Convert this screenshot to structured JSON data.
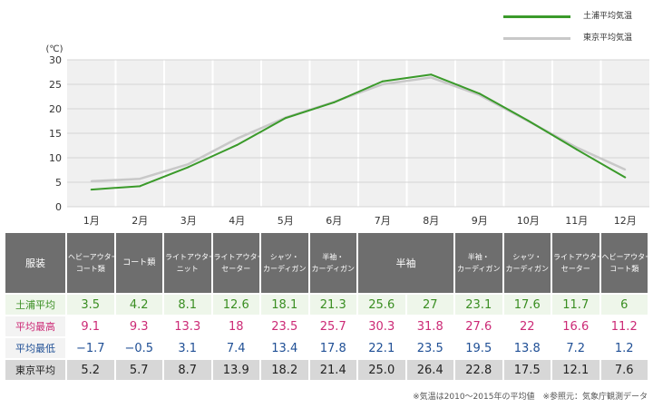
{
  "legend": [
    {
      "label": "土浦平均気温",
      "color": "#3a9a2a"
    },
    {
      "label": "東京平均気温",
      "color": "#c8c8c8"
    }
  ],
  "chart_data": {
    "type": "line",
    "title": "",
    "ylabel": "(℃)",
    "ylim": [
      0,
      30
    ],
    "yticks": [
      "0",
      "5",
      "10",
      "15",
      "20",
      "25",
      "30"
    ],
    "categories": [
      "1月",
      "2月",
      "3月",
      "4月",
      "5月",
      "6月",
      "7月",
      "8月",
      "9月",
      "10月",
      "11月",
      "12月"
    ],
    "series": [
      {
        "name": "東京平均気温",
        "color": "#c8c8c8",
        "values": [
          5.2,
          5.7,
          8.7,
          13.9,
          18.2,
          21.4,
          25.0,
          26.4,
          22.8,
          17.5,
          12.1,
          7.6
        ]
      },
      {
        "name": "土浦平均気温",
        "color": "#3a9a2a",
        "values": [
          3.5,
          4.2,
          8.1,
          12.6,
          18.1,
          21.3,
          25.6,
          27,
          23.1,
          17.6,
          11.7,
          6
        ]
      }
    ]
  },
  "table": {
    "corner": "服装",
    "clothing": [
      {
        "lines": [
          "ヘビーアウター・",
          "コート類"
        ],
        "span": 1
      },
      {
        "lines": [
          "コート類"
        ],
        "span": 1
      },
      {
        "lines": [
          "ライトアウター・",
          "ニット"
        ],
        "span": 1
      },
      {
        "lines": [
          "ライトアウター・",
          "セーター"
        ],
        "span": 1
      },
      {
        "lines": [
          "シャツ・",
          "カーディガン"
        ],
        "span": 1
      },
      {
        "lines": [
          "半袖・",
          "カーディガン"
        ],
        "span": 1
      },
      {
        "lines": [
          "半袖"
        ],
        "span": 2
      },
      {
        "lines": [
          "半袖・",
          "カーディガン"
        ],
        "span": 1
      },
      {
        "lines": [
          "シャツ・",
          "カーディガン"
        ],
        "span": 1
      },
      {
        "lines": [
          "ライトアウター・",
          "セーター"
        ],
        "span": 1
      },
      {
        "lines": [
          "ヘビーアウター・",
          "コート類"
        ],
        "span": 1
      }
    ],
    "rows": [
      {
        "key": "tsuchiura",
        "label": "土浦平均",
        "values": [
          "3.5",
          "4.2",
          "8.1",
          "12.6",
          "18.1",
          "21.3",
          "25.6",
          "27",
          "23.1",
          "17.6",
          "11.7",
          "6"
        ]
      },
      {
        "key": "max",
        "label": "平均最高",
        "values": [
          "9.1",
          "9.3",
          "13.3",
          "18",
          "23.5",
          "25.7",
          "30.3",
          "31.8",
          "27.6",
          "22",
          "16.6",
          "11.2"
        ]
      },
      {
        "key": "min",
        "label": "平均最低",
        "values": [
          "−1.7",
          "−0.5",
          "3.1",
          "7.4",
          "13.4",
          "17.8",
          "22.1",
          "23.5",
          "19.5",
          "13.8",
          "7.2",
          "1.2"
        ]
      },
      {
        "key": "tokyo",
        "label": "東京平均",
        "values": [
          "5.2",
          "5.7",
          "8.7",
          "13.9",
          "18.2",
          "21.4",
          "25.0",
          "26.4",
          "22.8",
          "17.5",
          "12.1",
          "7.6"
        ]
      }
    ]
  },
  "footnote": "※気温は2010〜2015年の平均値　※参照元：気象庁観測データ"
}
